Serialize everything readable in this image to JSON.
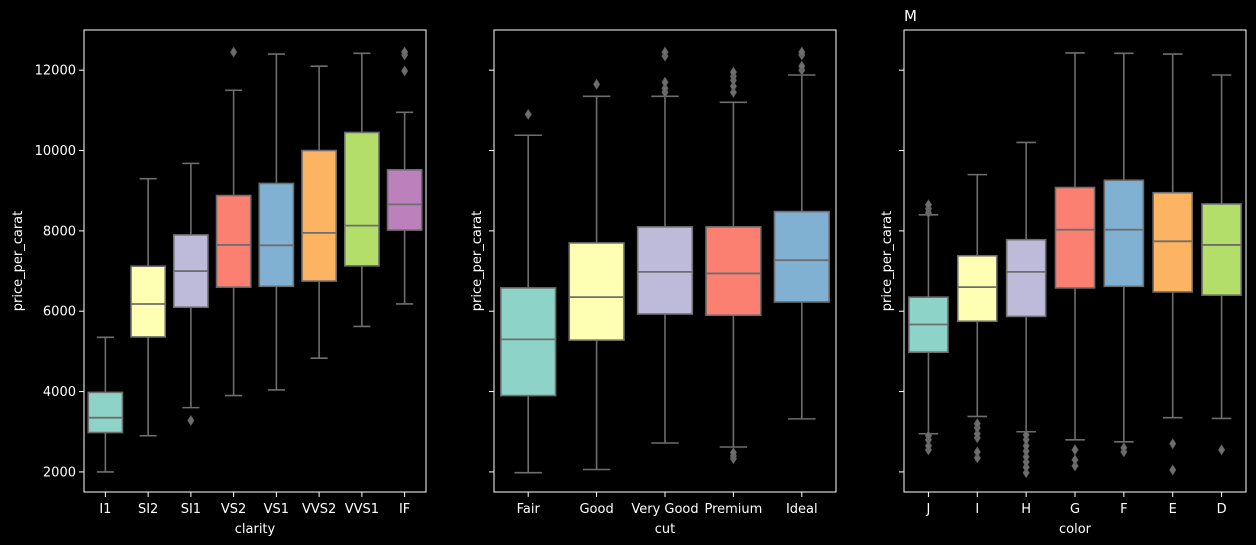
{
  "chart_data": [
    {
      "type": "box",
      "title": "",
      "xlabel": "clarity",
      "ylabel": "price_per_carat",
      "ylim": [
        1500,
        13000
      ],
      "yticks": [
        2000,
        4000,
        6000,
        8000,
        10000,
        12000
      ],
      "ytick_labels_visible": true,
      "grid": false,
      "categories": [
        "I1",
        "SI2",
        "SI1",
        "VS2",
        "VS1",
        "VVS2",
        "VVS1",
        "IF"
      ],
      "colors": [
        "#8dd3c7",
        "#ffffb3",
        "#bebada",
        "#fb8072",
        "#80b1d3",
        "#fdb462",
        "#b3de69",
        "#bc80bd"
      ],
      "boxes": [
        {
          "whisker_low": 2000,
          "q1": 2980,
          "median": 3350,
          "q3": 3980,
          "whisker_high": 5350,
          "outliers": []
        },
        {
          "whisker_low": 2900,
          "q1": 5360,
          "median": 6180,
          "q3": 7120,
          "whisker_high": 9300,
          "outliers": []
        },
        {
          "whisker_low": 3600,
          "q1": 6100,
          "median": 7000,
          "q3": 7900,
          "whisker_high": 9680,
          "outliers": [
            3280
          ]
        },
        {
          "whisker_low": 3900,
          "q1": 6600,
          "median": 7650,
          "q3": 8880,
          "whisker_high": 11500,
          "outliers": [
            12450
          ]
        },
        {
          "whisker_low": 4040,
          "q1": 6620,
          "median": 7640,
          "q3": 9180,
          "whisker_high": 12400,
          "outliers": []
        },
        {
          "whisker_low": 4830,
          "q1": 6750,
          "median": 7950,
          "q3": 10000,
          "whisker_high": 12100,
          "outliers": []
        },
        {
          "whisker_low": 5620,
          "q1": 7130,
          "median": 8130,
          "q3": 10450,
          "whisker_high": 12420,
          "outliers": []
        },
        {
          "whisker_low": 6180,
          "q1": 8020,
          "median": 8660,
          "q3": 9520,
          "whisker_high": 10950,
          "outliers": [
            11980,
            12380,
            12450
          ]
        }
      ]
    },
    {
      "type": "box",
      "title": "",
      "xlabel": "cut",
      "ylabel": "price_per_carat",
      "ylim": [
        1500,
        13000
      ],
      "yticks": [
        2000,
        4000,
        6000,
        8000,
        10000,
        12000
      ],
      "ytick_labels_visible": false,
      "grid": false,
      "categories": [
        "Fair",
        "Good",
        "Very Good",
        "Premium",
        "Ideal"
      ],
      "colors": [
        "#8dd3c7",
        "#ffffb3",
        "#bebada",
        "#fb8072",
        "#80b1d3"
      ],
      "boxes": [
        {
          "whisker_low": 1980,
          "q1": 3900,
          "median": 5300,
          "q3": 6580,
          "whisker_high": 10380,
          "outliers": [
            10900
          ]
        },
        {
          "whisker_low": 2060,
          "q1": 5280,
          "median": 6350,
          "q3": 7700,
          "whisker_high": 11350,
          "outliers": [
            11650
          ]
        },
        {
          "whisker_low": 2720,
          "q1": 5930,
          "median": 6980,
          "q3": 8100,
          "whisker_high": 11350,
          "outliers": [
            11450,
            11550,
            11700,
            12350,
            12450
          ]
        },
        {
          "whisker_low": 2620,
          "q1": 5900,
          "median": 6940,
          "q3": 8100,
          "whisker_high": 11200,
          "outliers": [
            2330,
            2400,
            2480,
            11450,
            11600,
            11750,
            11850,
            11950
          ]
        },
        {
          "whisker_low": 3320,
          "q1": 6230,
          "median": 7270,
          "q3": 8480,
          "whisker_high": 11880,
          "outliers": [
            12000,
            12100,
            12380,
            12450
          ]
        }
      ]
    },
    {
      "type": "box",
      "title": "M",
      "xlabel": "color",
      "ylabel": "price_per_carat",
      "ylim": [
        1500,
        13000
      ],
      "yticks": [
        2000,
        4000,
        6000,
        8000,
        10000,
        12000
      ],
      "ytick_labels_visible": false,
      "grid": false,
      "categories": [
        "J",
        "I",
        "H",
        "G",
        "F",
        "E",
        "D"
      ],
      "colors": [
        "#8dd3c7",
        "#ffffb3",
        "#bebada",
        "#fb8072",
        "#80b1d3",
        "#fdb462",
        "#b3de69"
      ],
      "boxes": [
        {
          "whisker_low": 2950,
          "q1": 4980,
          "median": 5670,
          "q3": 6350,
          "whisker_high": 8400,
          "outliers": [
            2550,
            2650,
            2800,
            2900,
            8450,
            8550,
            8650
          ]
        },
        {
          "whisker_low": 3380,
          "q1": 5750,
          "median": 6600,
          "q3": 7380,
          "whisker_high": 9400,
          "outliers": [
            2350,
            2500,
            2850,
            2950,
            3100,
            3200
          ]
        },
        {
          "whisker_low": 3000,
          "q1": 5870,
          "median": 6980,
          "q3": 7780,
          "whisker_high": 10200,
          "outliers": [
            1980,
            2120,
            2250,
            2380,
            2520,
            2650,
            2800,
            2920
          ]
        },
        {
          "whisker_low": 2800,
          "q1": 6580,
          "median": 8030,
          "q3": 9080,
          "whisker_high": 12430,
          "outliers": [
            2150,
            2300,
            2550
          ]
        },
        {
          "whisker_low": 2750,
          "q1": 6620,
          "median": 8030,
          "q3": 9260,
          "whisker_high": 12420,
          "outliers": [
            2500,
            2600
          ]
        },
        {
          "whisker_low": 3350,
          "q1": 6480,
          "median": 7740,
          "q3": 8950,
          "whisker_high": 12400,
          "outliers": [
            2050,
            2700
          ]
        },
        {
          "whisker_low": 3330,
          "q1": 6400,
          "median": 7650,
          "q3": 8670,
          "whisker_high": 11880,
          "outliers": [
            2550
          ]
        }
      ]
    }
  ]
}
